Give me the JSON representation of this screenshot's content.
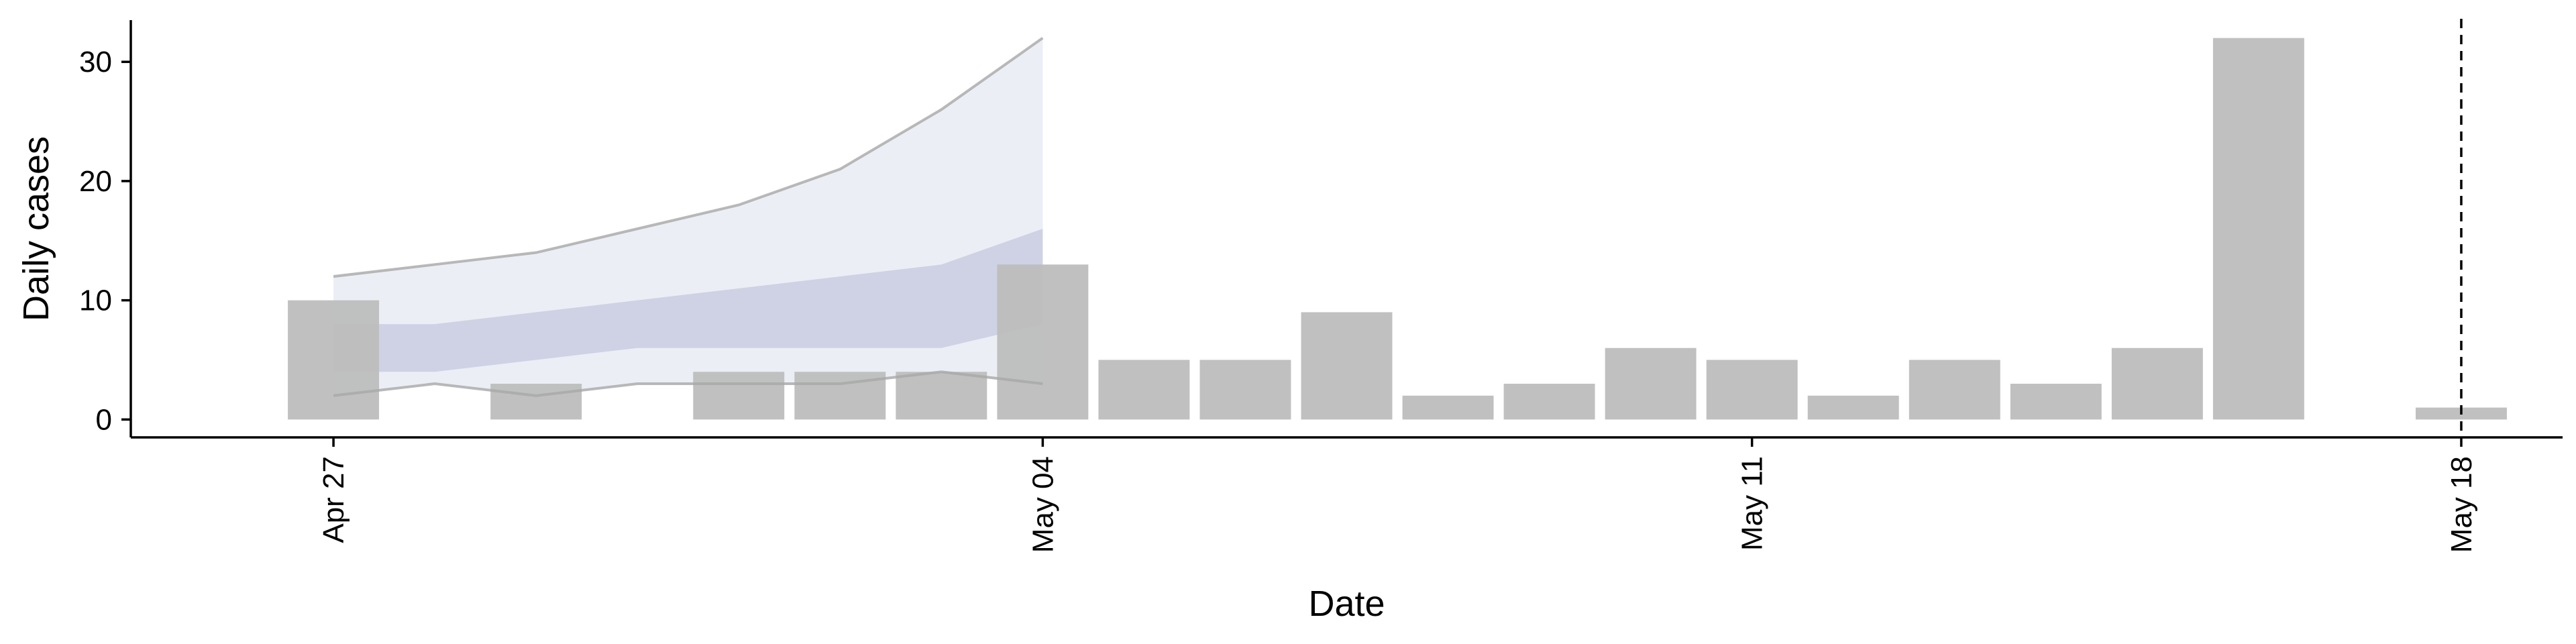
{
  "chart_data": {
    "type": "bar",
    "xlabel": "Date",
    "ylabel": "Daily cases",
    "x_tick_labels": [
      {
        "label": "Apr 27",
        "date": "2020-04-27"
      },
      {
        "label": "May 04",
        "date": "2020-05-04"
      },
      {
        "label": "May 11",
        "date": "2020-05-11"
      },
      {
        "label": "May 18",
        "date": "2020-05-18"
      }
    ],
    "y_ticks": [
      0,
      10,
      20,
      30
    ],
    "ylim": [
      -1.5,
      33.5
    ],
    "xlim": [
      "2020-04-25",
      "2020-05-19"
    ],
    "grid": false,
    "reference_line": {
      "date": "2020-05-18",
      "style": "dashed"
    },
    "bars": [
      {
        "date": "2020-04-27",
        "value": 10
      },
      {
        "date": "2020-04-29",
        "value": 3
      },
      {
        "date": "2020-05-01",
        "value": 4
      },
      {
        "date": "2020-05-02",
        "value": 4
      },
      {
        "date": "2020-05-03",
        "value": 4
      },
      {
        "date": "2020-05-04",
        "value": 13
      },
      {
        "date": "2020-05-05",
        "value": 5
      },
      {
        "date": "2020-05-06",
        "value": 5
      },
      {
        "date": "2020-05-07",
        "value": 9
      },
      {
        "date": "2020-05-08",
        "value": 2
      },
      {
        "date": "2020-05-09",
        "value": 3
      },
      {
        "date": "2020-05-10",
        "value": 6
      },
      {
        "date": "2020-05-11",
        "value": 5
      },
      {
        "date": "2020-05-12",
        "value": 2
      },
      {
        "date": "2020-05-13",
        "value": 5
      },
      {
        "date": "2020-05-14",
        "value": 3
      },
      {
        "date": "2020-05-15",
        "value": 6
      },
      {
        "date": "2020-05-16",
        "value": 32
      },
      {
        "date": "2020-05-18",
        "value": 1
      }
    ],
    "outer_band": [
      {
        "date": "2020-04-27",
        "lower": 2,
        "upper": 12
      },
      {
        "date": "2020-04-28",
        "lower": 3,
        "upper": 13
      },
      {
        "date": "2020-04-29",
        "lower": 2,
        "upper": 14
      },
      {
        "date": "2020-04-30",
        "lower": 3,
        "upper": 16
      },
      {
        "date": "2020-05-01",
        "lower": 3,
        "upper": 18
      },
      {
        "date": "2020-05-02",
        "lower": 3,
        "upper": 21
      },
      {
        "date": "2020-05-03",
        "lower": 4,
        "upper": 26
      },
      {
        "date": "2020-05-04",
        "lower": 3,
        "upper": 32
      }
    ],
    "inner_band": [
      {
        "date": "2020-04-27",
        "lower": 4,
        "upper": 8
      },
      {
        "date": "2020-04-28",
        "lower": 4,
        "upper": 8
      },
      {
        "date": "2020-04-29",
        "lower": 5,
        "upper": 9
      },
      {
        "date": "2020-04-30",
        "lower": 6,
        "upper": 10
      },
      {
        "date": "2020-05-01",
        "lower": 6,
        "upper": 11
      },
      {
        "date": "2020-05-02",
        "lower": 6,
        "upper": 12
      },
      {
        "date": "2020-05-03",
        "lower": 6,
        "upper": 13
      },
      {
        "date": "2020-05-04",
        "lower": 8,
        "upper": 16
      }
    ],
    "colors": {
      "bar": "#bdbdbd",
      "outer_band": "#dde0ec",
      "inner_band": "#b6bcd6",
      "band_edge": "#a8a8a8",
      "axis": "#000000"
    }
  }
}
